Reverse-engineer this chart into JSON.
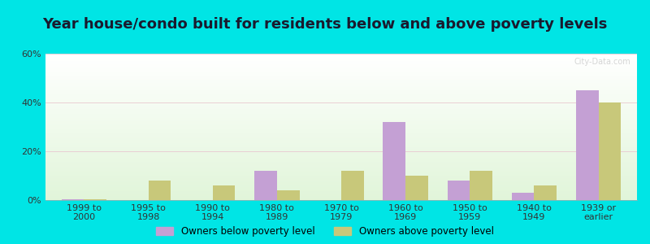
{
  "title": "Year house/condo built for residents below and above poverty levels",
  "categories": [
    "1999 to\n2000",
    "1995 to\n1998",
    "1990 to\n1994",
    "1980 to\n1989",
    "1970 to\n1979",
    "1960 to\n1969",
    "1950 to\n1959",
    "1940 to\n1949",
    "1939 or\nearlier"
  ],
  "below_poverty": [
    0.5,
    0,
    0,
    12,
    0,
    32,
    8,
    3,
    45
  ],
  "above_poverty": [
    0.5,
    8,
    6,
    4,
    12,
    10,
    12,
    6,
    40
  ],
  "below_color": "#c4a0d4",
  "above_color": "#c8c87a",
  "ylim": [
    0,
    60
  ],
  "yticks": [
    0,
    20,
    40,
    60
  ],
  "ytick_labels": [
    "0%",
    "20%",
    "40%",
    "60%"
  ],
  "outer_bg": "#00e5e5",
  "title_fontsize": 13,
  "tick_fontsize": 8,
  "legend_label_below": "Owners below poverty level",
  "legend_label_above": "Owners above poverty level",
  "bar_width": 0.35,
  "watermark": "City-Data.com"
}
